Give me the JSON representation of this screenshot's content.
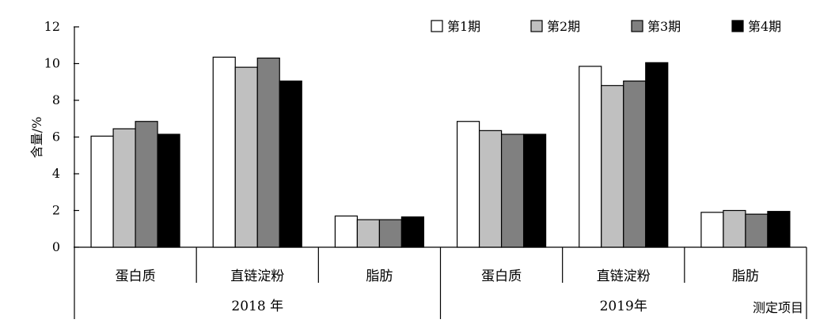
{
  "chart_data": {
    "type": "bar",
    "ylabel": "含量/%",
    "xlabel": "测定项目",
    "ylim": [
      0,
      12
    ],
    "yticks": [
      0,
      2,
      4,
      6,
      8,
      10,
      12
    ],
    "legend_position": "top-right",
    "grid": false,
    "groups": [
      {
        "label": "2018 年",
        "categories": [
          "蛋白质",
          "直链淀粉",
          "脂肪"
        ]
      },
      {
        "label": "2019年",
        "categories": [
          "蛋白质",
          "直链淀粉",
          "脂肪"
        ]
      }
    ],
    "series": [
      {
        "name": "第1期",
        "color": "#ffffff",
        "values": [
          6.05,
          10.35,
          1.7,
          6.85,
          9.85,
          1.9
        ]
      },
      {
        "name": "第2期",
        "color": "#c0c0c0",
        "values": [
          6.45,
          9.8,
          1.5,
          6.35,
          8.8,
          2.0
        ]
      },
      {
        "name": "第3期",
        "color": "#808080",
        "values": [
          6.85,
          10.3,
          1.5,
          6.15,
          9.05,
          1.8
        ]
      },
      {
        "name": "第4期",
        "color": "#000000",
        "values": [
          6.15,
          9.05,
          1.65,
          6.15,
          10.05,
          1.95
        ]
      }
    ]
  }
}
